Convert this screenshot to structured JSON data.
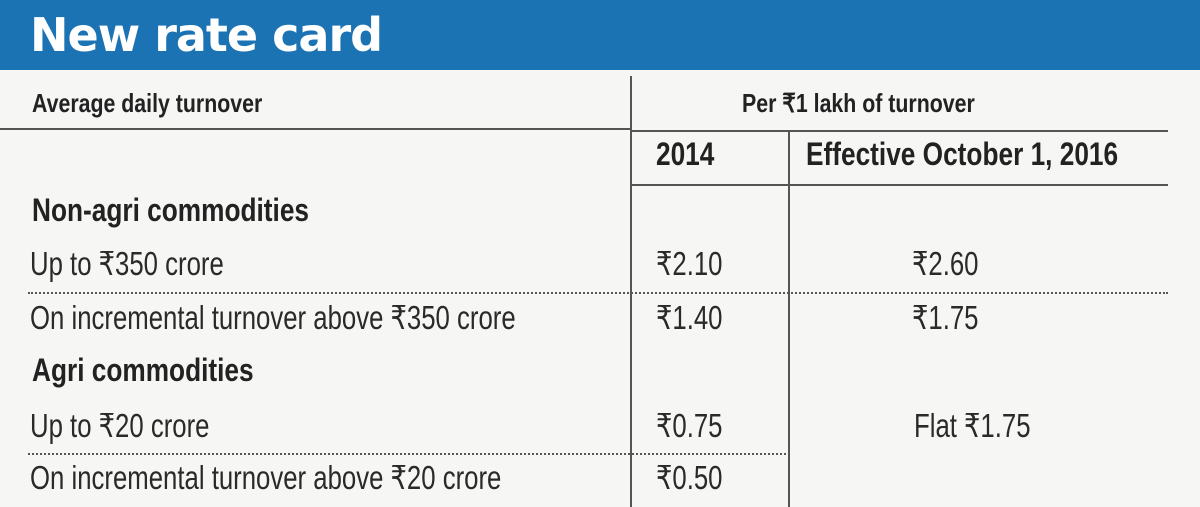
{
  "title": "New rate card",
  "colors": {
    "banner": "#1c73b3",
    "title_text": "#ffffff",
    "background": "#f6f6f4",
    "rules": "#555555"
  },
  "table": {
    "header_left": "Average daily turnover",
    "header_right": "Per ₹1 lakh of turnover",
    "col_2014": "2014",
    "col_2016": "Effective October 1, 2016",
    "sections": [
      {
        "name": "Non-agri commodities",
        "rows": [
          {
            "label": "Up to ₹350 crore",
            "v2014": "₹2.10",
            "v2016": "₹2.60"
          },
          {
            "label": "On incremental turnover above ₹350 crore",
            "v2014": "₹1.40",
            "v2016": "₹1.75"
          }
        ]
      },
      {
        "name": "Agri commodities",
        "rows": [
          {
            "label": "Up to ₹20 crore",
            "v2014": "₹0.75",
            "v2016": "Flat ₹1.75"
          },
          {
            "label": "On incremental turnover above ₹20 crore",
            "v2014": "₹0.50",
            "v2016": ""
          }
        ]
      }
    ]
  }
}
